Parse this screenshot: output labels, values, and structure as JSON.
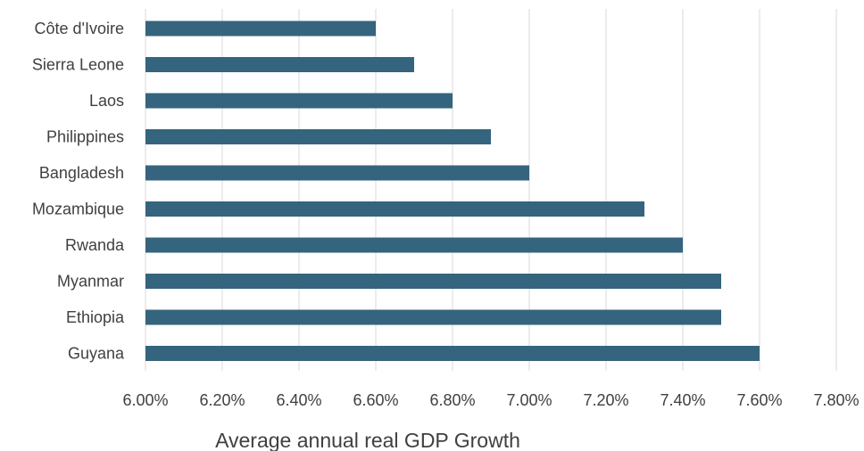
{
  "chart_data": {
    "type": "bar",
    "orientation": "horizontal",
    "categories": [
      "Côte d'Ivoire",
      "Sierra Leone",
      "Laos",
      "Philippines",
      "Bangladesh",
      "Mozambique",
      "Rwanda",
      "Myanmar",
      "Ethiopia",
      "Guyana"
    ],
    "values": [
      6.6,
      6.7,
      6.8,
      6.9,
      7.0,
      7.3,
      7.4,
      7.5,
      7.5,
      7.6
    ],
    "xlabel": "Average annual real GDP Growth",
    "xlim": [
      6.0,
      7.8
    ],
    "x_ticks": [
      "6.00%",
      "6.20%",
      "6.40%",
      "6.60%",
      "6.80%",
      "7.00%",
      "7.20%",
      "7.40%",
      "7.60%",
      "7.80%"
    ],
    "tick_step": 0.2,
    "grid": true,
    "bar_color": "#35647e",
    "grid_color": "#d9d9d9"
  }
}
